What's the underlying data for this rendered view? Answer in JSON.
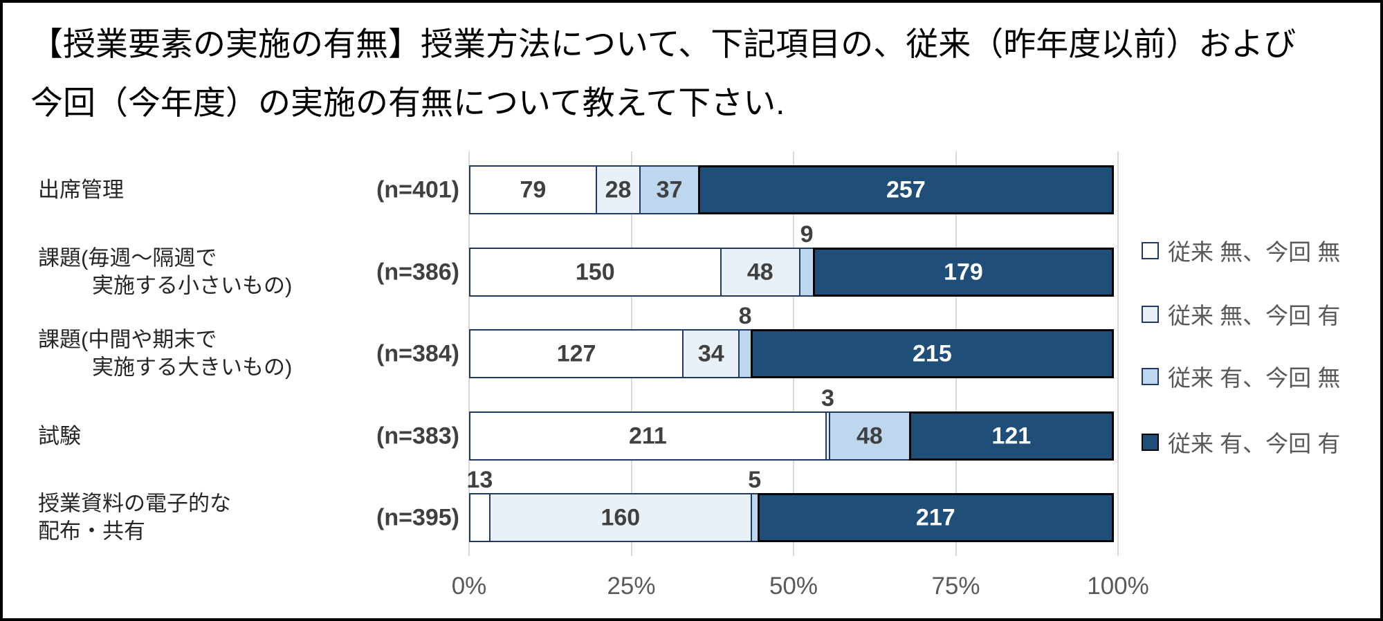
{
  "title": {
    "line1": "【授業要素の実施の有無】授業方法について、下記項目の、従来（昨年度以前）および",
    "line2": "今回（今年度）の実施の有無について教えて下さい."
  },
  "chart_data": {
    "type": "bar",
    "orientation": "horizontal",
    "stacked": true,
    "normalized_to_percent": true,
    "x_axis": {
      "ticks": [
        "0%",
        "25%",
        "50%",
        "75%",
        "100%"
      ],
      "range": [
        0,
        100
      ],
      "grid": true
    },
    "legend_position": "right",
    "legend": [
      {
        "label": "従来 無、今回 無",
        "color": "#ffffff"
      },
      {
        "label": "従来 無、今回 有",
        "color": "#e8f1f8"
      },
      {
        "label": "従来 有、今回 無",
        "color": "#bdd7ee"
      },
      {
        "label": "従来 有、今回 有",
        "color": "#1f4e79"
      }
    ],
    "rows": [
      {
        "category_line1": "出席管理",
        "category_line2": "",
        "n_label": "(n=401)",
        "n": 401,
        "values": [
          79,
          28,
          37,
          257
        ],
        "label_pos": [
          "in",
          "in",
          "in",
          "in"
        ]
      },
      {
        "category_line1": "課題(毎週～隔週で",
        "category_line2": "実施する小さいもの)",
        "n_label": "(n=386)",
        "n": 386,
        "values": [
          150,
          48,
          9,
          179
        ],
        "label_pos": [
          "in",
          "in",
          "above",
          "in"
        ]
      },
      {
        "category_line1": "課題(中間や期末で",
        "category_line2": "実施する大きいもの)",
        "n_label": "(n=384)",
        "n": 384,
        "values": [
          127,
          34,
          8,
          215
        ],
        "label_pos": [
          "in",
          "in",
          "above",
          "in"
        ]
      },
      {
        "category_line1": "試験",
        "category_line2": "",
        "n_label": "(n=383)",
        "n": 383,
        "values": [
          211,
          3,
          48,
          121
        ],
        "label_pos": [
          "in",
          "above",
          "in",
          "in"
        ]
      },
      {
        "category_line1": "授業資料の電子的な",
        "category_line2": "配布・共有",
        "n_label": "(n=395)",
        "n": 395,
        "values": [
          13,
          160,
          5,
          217
        ],
        "label_pos": [
          "above",
          "in",
          "above",
          "in"
        ]
      }
    ],
    "colors": {
      "segment_border": "#1f3864",
      "dark_segment_border": "#000000",
      "gridline": "#d9d9d9",
      "axis_text": "#595959",
      "value_text": "#404040",
      "value_text_on_dark": "#ffffff"
    }
  }
}
